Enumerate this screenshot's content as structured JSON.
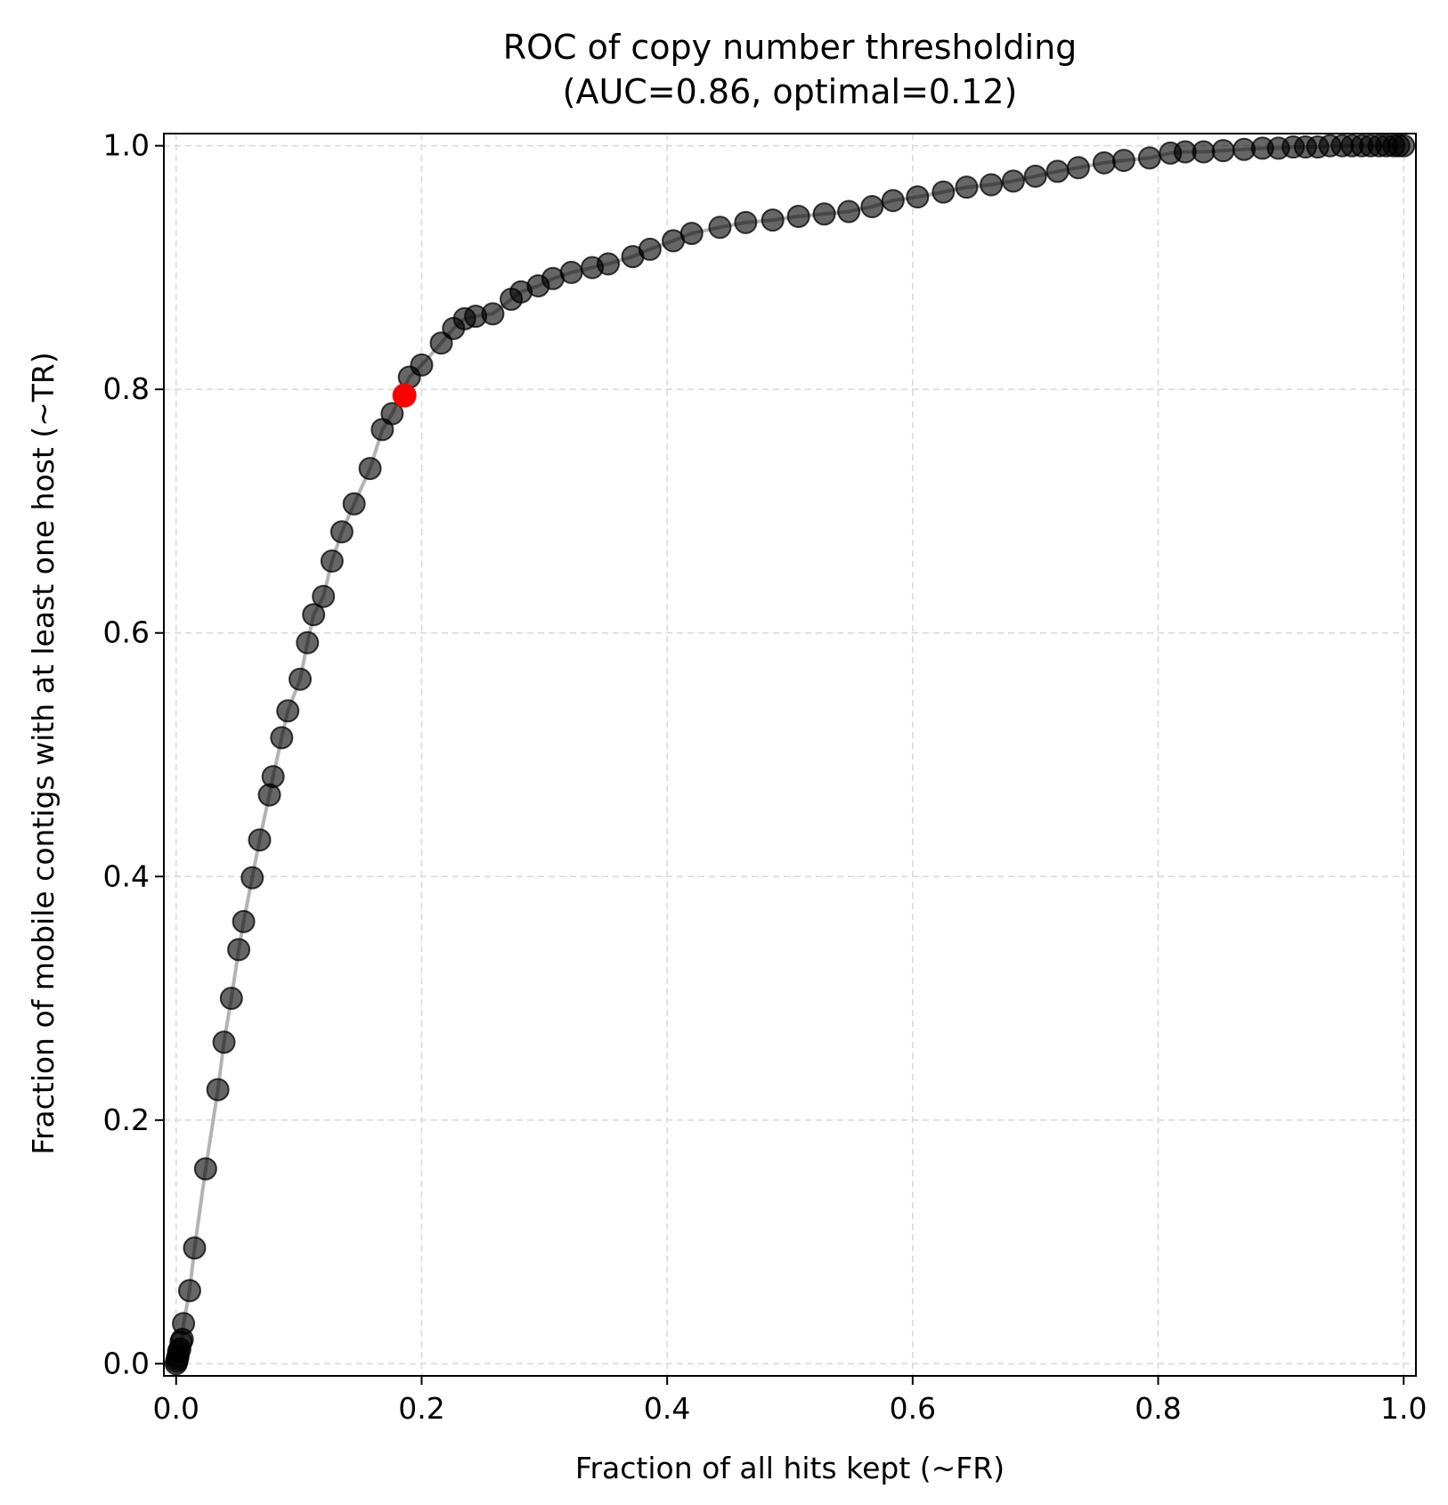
{
  "chart_data": {
    "type": "scatter",
    "title": "ROC of copy number thresholding",
    "subtitle": "(AUC=0.86, optimal=0.12)",
    "xlabel": "Fraction of all hits kept (~FR)",
    "ylabel": "Fraction of mobile contigs with at least one host (~TR)",
    "xlim": [
      -0.01,
      1.01
    ],
    "ylim": [
      -0.01,
      1.01
    ],
    "xticks": [
      "0.0",
      "0.2",
      "0.4",
      "0.6",
      "0.8",
      "1.0"
    ],
    "yticks": [
      "0.0",
      "0.2",
      "0.4",
      "0.6",
      "0.8",
      "1.0"
    ],
    "grid": true,
    "colors": {
      "points": "#000000",
      "line": "#a6a6a6",
      "optimal": "#ff0000"
    },
    "series": [
      {
        "x": [
          0.0,
          0.0005,
          0.001,
          0.0015,
          0.002,
          0.003,
          0.004,
          0.005,
          0.006,
          0.011,
          0.015,
          0.024,
          0.034,
          0.039,
          0.045,
          0.051,
          0.055,
          0.062,
          0.068,
          0.076,
          0.079,
          0.086,
          0.091,
          0.101,
          0.107,
          0.112,
          0.12,
          0.127,
          0.135,
          0.145,
          0.158,
          0.168,
          0.176,
          0.19,
          0.2,
          0.216,
          0.226,
          0.235,
          0.244,
          0.258,
          0.273,
          0.281,
          0.295,
          0.307,
          0.322,
          0.339,
          0.352,
          0.372,
          0.386,
          0.405,
          0.42,
          0.443,
          0.464,
          0.486,
          0.507,
          0.528,
          0.548,
          0.567,
          0.584,
          0.604,
          0.625,
          0.644,
          0.664,
          0.682,
          0.7,
          0.718,
          0.735,
          0.756,
          0.772,
          0.793,
          0.81,
          0.822,
          0.837,
          0.853,
          0.87,
          0.885,
          0.898,
          0.91,
          0.92,
          0.93,
          0.94,
          0.95,
          0.958,
          0.966,
          0.973,
          0.98,
          0.986,
          0.992,
          0.996,
          1.0
        ],
        "y": [
          0.0,
          0.002,
          0.004,
          0.006,
          0.01,
          0.012,
          0.018,
          0.02,
          0.033,
          0.06,
          0.095,
          0.16,
          0.225,
          0.264,
          0.3,
          0.34,
          0.363,
          0.399,
          0.43,
          0.467,
          0.482,
          0.514,
          0.536,
          0.562,
          0.592,
          0.615,
          0.63,
          0.659,
          0.683,
          0.706,
          0.735,
          0.767,
          0.78,
          0.81,
          0.82,
          0.838,
          0.85,
          0.858,
          0.86,
          0.862,
          0.874,
          0.88,
          0.885,
          0.891,
          0.896,
          0.9,
          0.903,
          0.909,
          0.915,
          0.922,
          0.928,
          0.933,
          0.937,
          0.939,
          0.942,
          0.944,
          0.946,
          0.95,
          0.955,
          0.958,
          0.962,
          0.966,
          0.968,
          0.971,
          0.975,
          0.979,
          0.982,
          0.986,
          0.988,
          0.99,
          0.994,
          0.995,
          0.995,
          0.996,
          0.997,
          0.998,
          0.998,
          0.999,
          0.999,
          0.999,
          1.0,
          1.0,
          1.0,
          1.0,
          1.0,
          1.0,
          1.0,
          1.0,
          1.0,
          1.0
        ]
      }
    ],
    "optimal_point": {
      "x": 0.186,
      "y": 0.795
    }
  }
}
